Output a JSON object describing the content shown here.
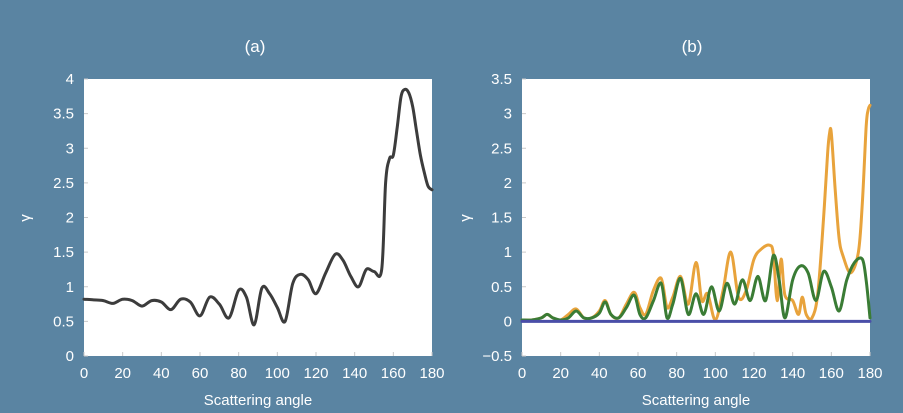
{
  "chart_data": [
    {
      "type": "line",
      "panel_label": "(a)",
      "xlabel": "Scattering angle",
      "ylabel": "γ",
      "xlim": [
        0,
        180
      ],
      "ylim": [
        0,
        4
      ],
      "xticks": [
        "0",
        "20",
        "40",
        "60",
        "80",
        "100",
        "120",
        "140",
        "160",
        "180"
      ],
      "yticks": [
        "0",
        "0.5",
        "1",
        "1.5",
        "2",
        "2.5",
        "3",
        "3.5",
        "4"
      ],
      "series": [
        {
          "color": "#3c3c3c",
          "x": [
            0,
            5,
            10,
            15,
            20,
            25,
            30,
            35,
            40,
            45,
            50,
            55,
            60,
            65,
            70,
            75,
            80,
            84,
            88,
            92,
            96,
            100,
            104,
            108,
            112,
            116,
            120,
            125,
            130,
            134,
            138,
            142,
            146,
            150,
            154,
            156,
            158,
            160,
            162,
            164,
            166,
            168,
            170,
            172,
            174,
            176,
            178,
            180
          ],
          "y": [
            0.82,
            0.81,
            0.8,
            0.76,
            0.82,
            0.8,
            0.72,
            0.8,
            0.78,
            0.67,
            0.82,
            0.78,
            0.58,
            0.85,
            0.75,
            0.55,
            0.95,
            0.85,
            0.45,
            0.98,
            0.9,
            0.7,
            0.5,
            1.05,
            1.18,
            1.1,
            0.9,
            1.2,
            1.47,
            1.38,
            1.15,
            1.0,
            1.25,
            1.22,
            1.25,
            2.5,
            2.85,
            2.9,
            3.3,
            3.75,
            3.85,
            3.8,
            3.6,
            3.25,
            2.9,
            2.65,
            2.45,
            2.4
          ]
        }
      ]
    },
    {
      "type": "line",
      "panel_label": "(b)",
      "xlabel": "Scattering angle",
      "ylabel": "γ",
      "xlim": [
        0,
        180
      ],
      "ylim": [
        -0.5,
        3.5
      ],
      "xticks": [
        "0",
        "20",
        "40",
        "60",
        "80",
        "100",
        "120",
        "140",
        "160",
        "180"
      ],
      "yticks": [
        "−0.5",
        "0",
        "0.5",
        "1",
        "1.5",
        "2",
        "2.5",
        "3",
        "3.5"
      ],
      "series": [
        {
          "color": "#e8a33c",
          "x": [
            0,
            5,
            10,
            13,
            16,
            20,
            24,
            28,
            32,
            36,
            40,
            43,
            46,
            50,
            54,
            58,
            61,
            64,
            68,
            72,
            75,
            78,
            82,
            86,
            90,
            93,
            96,
            100,
            104,
            108,
            112,
            116,
            120,
            124,
            128,
            130,
            132,
            134,
            136,
            140,
            143,
            145,
            147,
            150,
            153,
            156,
            158,
            159,
            160,
            162,
            164,
            166,
            170,
            174,
            176,
            178,
            179,
            180
          ],
          "y": [
            0.02,
            0.02,
            0.05,
            0.1,
            0.05,
            0.02,
            0.1,
            0.18,
            0.05,
            0.05,
            0.15,
            0.3,
            0.1,
            0.05,
            0.25,
            0.42,
            0.2,
            0.1,
            0.45,
            0.62,
            0.2,
            0.35,
            0.65,
            0.25,
            0.85,
            0.3,
            0.4,
            0.02,
            0.45,
            1.0,
            0.35,
            0.45,
            0.9,
            1.05,
            1.1,
            0.98,
            0.3,
            0.9,
            0.38,
            0.3,
            0.1,
            0.35,
            0.1,
            0.05,
            0.4,
            1.5,
            2.4,
            2.7,
            2.72,
            1.9,
            1.2,
            0.95,
            0.7,
            1.0,
            1.7,
            2.8,
            3.05,
            3.12
          ]
        },
        {
          "color": "#3a7c35",
          "x": [
            0,
            5,
            10,
            13,
            16,
            20,
            24,
            28,
            32,
            36,
            40,
            43,
            46,
            50,
            54,
            58,
            61,
            64,
            68,
            72,
            75,
            78,
            82,
            86,
            90,
            94,
            98,
            102,
            106,
            110,
            114,
            118,
            122,
            126,
            130,
            133,
            136,
            140,
            144,
            148,
            152,
            156,
            160,
            164,
            168,
            172,
            176,
            178,
            180
          ],
          "y": [
            0.02,
            0.02,
            0.05,
            0.1,
            0.05,
            0.02,
            0.05,
            0.15,
            0.05,
            0.05,
            0.12,
            0.28,
            0.1,
            0.05,
            0.2,
            0.38,
            0.1,
            0.05,
            0.3,
            0.55,
            0.05,
            0.25,
            0.62,
            0.1,
            0.4,
            0.1,
            0.5,
            0.15,
            0.55,
            0.25,
            0.6,
            0.3,
            0.65,
            0.3,
            0.95,
            0.6,
            0.05,
            0.6,
            0.8,
            0.7,
            0.3,
            0.72,
            0.5,
            0.15,
            0.6,
            0.85,
            0.9,
            0.6,
            0.05
          ]
        },
        {
          "color": "#4a4ea8",
          "x": [
            0,
            180
          ],
          "y": [
            0.0,
            0.0
          ]
        }
      ]
    }
  ]
}
